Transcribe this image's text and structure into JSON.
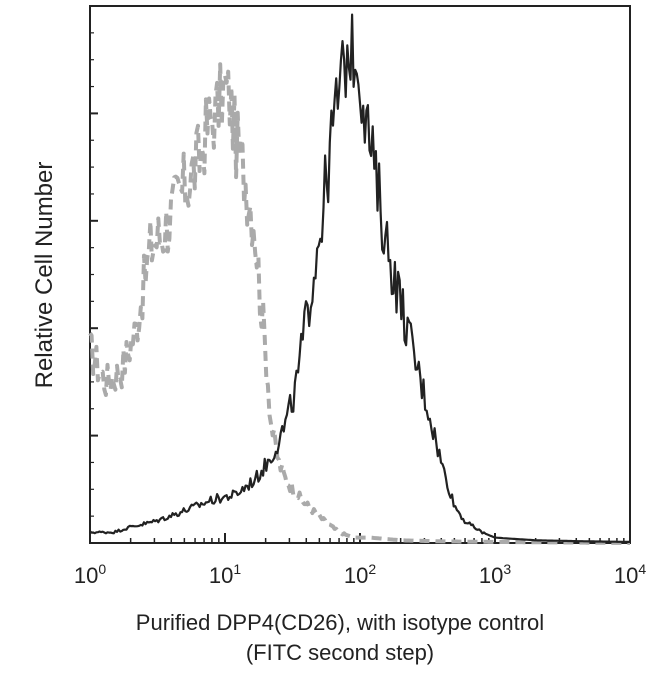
{
  "chart_data": {
    "type": "line",
    "title": "",
    "ylabel": "Relative Cell Number",
    "xlabel_line1": "Purified DPP4(CD26), with isotype control",
    "xlabel_line2": "(FITC second step)",
    "xscale": "log",
    "xlim": [
      1,
      10000
    ],
    "ylim": [
      0,
      100
    ],
    "x_ticks": [
      {
        "base": "10",
        "exp": "0"
      },
      {
        "base": "10",
        "exp": "1"
      },
      {
        "base": "10",
        "exp": "2"
      },
      {
        "base": "10",
        "exp": "3"
      },
      {
        "base": "10",
        "exp": "4"
      }
    ],
    "grid": false,
    "series": [
      {
        "style": "dashed",
        "color": "#aaaaaa",
        "x": [
          1,
          1.3,
          1.7,
          2.2,
          2.8,
          3.5,
          4.5,
          5.5,
          6.5,
          7.5,
          8.5,
          10,
          11,
          12,
          13.5,
          15,
          16.5,
          18,
          20,
          22,
          25,
          28,
          32,
          37,
          45,
          55,
          70,
          90,
          120,
          200,
          400,
          1000,
          10000
        ],
        "y": [
          36,
          30,
          32,
          40,
          55,
          58,
          64,
          68,
          72,
          78,
          80,
          85,
          82,
          75,
          70,
          65,
          60,
          48,
          36,
          22,
          15,
          12,
          10,
          8,
          6,
          4,
          2,
          1,
          1,
          0.5,
          0.3,
          0.2,
          0
        ]
      },
      {
        "style": "solid",
        "color": "#222222",
        "x": [
          1,
          1.5,
          2,
          3,
          5,
          8,
          12,
          17,
          22,
          28,
          33,
          38,
          45,
          55,
          65,
          75,
          85,
          95,
          110,
          130,
          160,
          200,
          250,
          320,
          400,
          500,
          600,
          800,
          1000,
          2000,
          5000,
          10000
        ],
        "y": [
          2,
          2,
          3,
          4,
          6,
          8,
          9,
          12,
          16,
          22,
          28,
          38,
          50,
          65,
          80,
          88,
          92,
          90,
          80,
          68,
          55,
          45,
          35,
          25,
          15,
          7,
          4,
          2,
          1,
          0.5,
          0.3,
          0.2
        ]
      }
    ]
  }
}
